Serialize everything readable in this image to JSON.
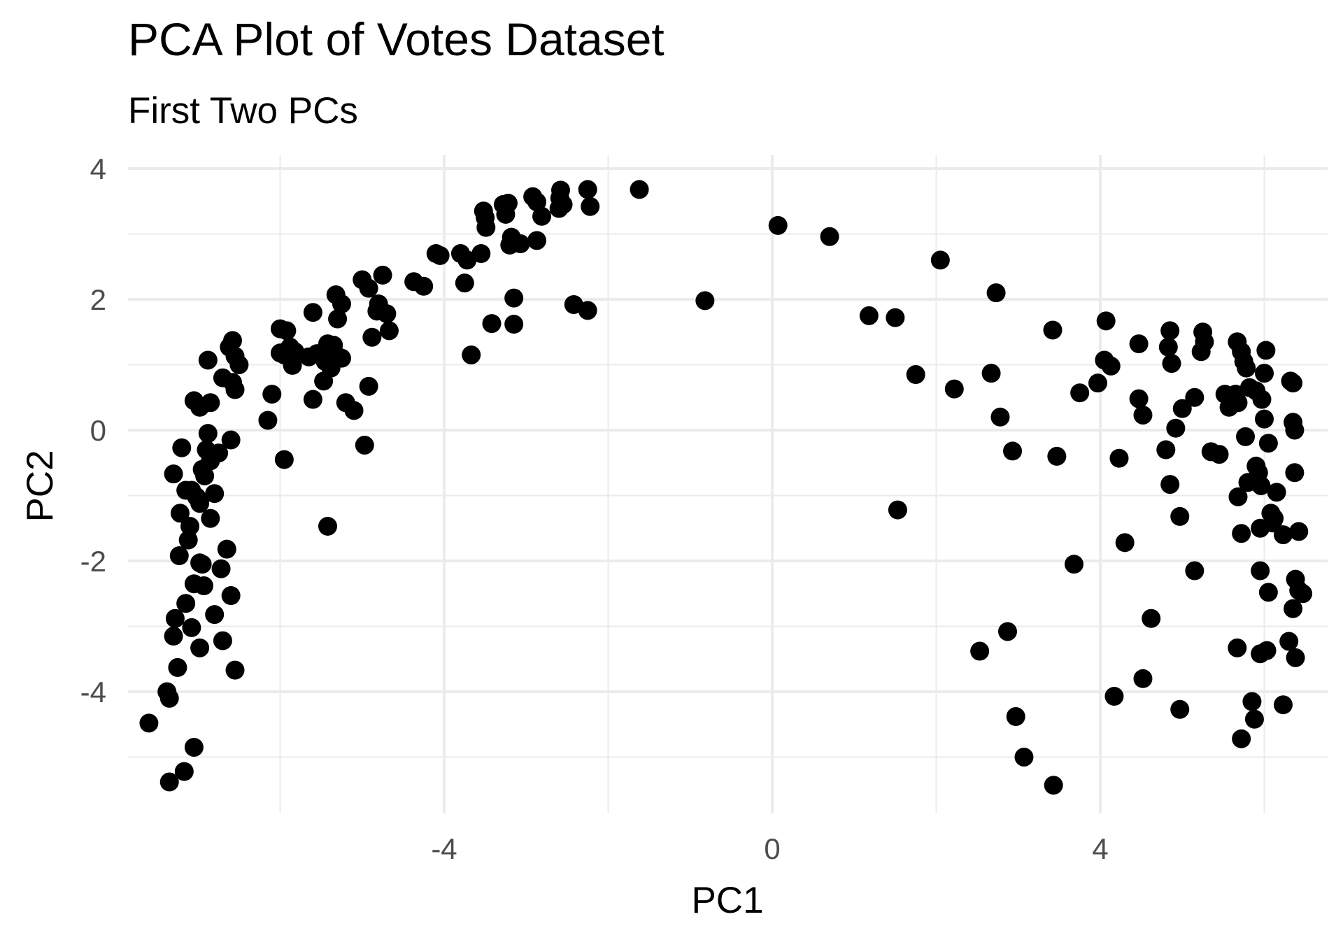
{
  "chart_data": {
    "type": "scatter",
    "title": "PCA Plot of Votes Dataset",
    "subtitle": "First Two PCs",
    "xlabel": "PC1",
    "ylabel": "PC2",
    "xlim": [
      -7.7,
      6.7
    ],
    "ylim": [
      -5.95,
      4.3
    ],
    "x_ticks": [
      -4,
      0,
      4
    ],
    "x_tick_labels": [
      "-4",
      "0",
      "4"
    ],
    "y_ticks": [
      -4,
      -2,
      0,
      2,
      4
    ],
    "y_tick_labels": [
      "-4",
      "-2",
      "0",
      "2",
      "4"
    ],
    "x_minor_ticks": [
      -6,
      -2,
      2,
      6
    ],
    "y_minor_ticks": [
      -5,
      -3,
      -1,
      1,
      3
    ],
    "grid": true,
    "legend": "none",
    "point_color": "#000000",
    "grid_color": "#ebebeb",
    "points": [
      [
        -3.52,
        3.35
      ],
      [
        -3.28,
        3.45
      ],
      [
        -3.22,
        3.47
      ],
      [
        -3.5,
        3.25
      ],
      [
        -3.25,
        3.3
      ],
      [
        -3.49,
        3.1
      ],
      [
        -2.92,
        3.57
      ],
      [
        -2.87,
        3.49
      ],
      [
        -2.58,
        3.67
      ],
      [
        -2.59,
        3.55
      ],
      [
        -2.55,
        3.45
      ],
      [
        -2.25,
        3.68
      ],
      [
        -2.22,
        3.42
      ],
      [
        -1.62,
        3.68
      ],
      [
        -3.18,
        2.95
      ],
      [
        -3.2,
        2.83
      ],
      [
        -3.07,
        2.85
      ],
      [
        -2.87,
        2.9
      ],
      [
        -2.81,
        3.27
      ],
      [
        -2.6,
        3.39
      ],
      [
        -4.1,
        2.7
      ],
      [
        -3.8,
        2.7
      ],
      [
        -3.72,
        2.6
      ],
      [
        -3.55,
        2.7
      ],
      [
        -4.05,
        2.67
      ],
      [
        -4.37,
        2.27
      ],
      [
        -4.25,
        2.2
      ],
      [
        -3.75,
        2.25
      ],
      [
        -4.75,
        2.37
      ],
      [
        -5.0,
        2.3
      ],
      [
        -4.92,
        2.17
      ],
      [
        -3.15,
        2.02
      ],
      [
        -2.42,
        1.92
      ],
      [
        -2.25,
        1.83
      ],
      [
        -0.82,
        1.98
      ],
      [
        -5.32,
        2.07
      ],
      [
        -5.25,
        1.93
      ],
      [
        -4.8,
        1.93
      ],
      [
        -4.7,
        1.78
      ],
      [
        -5.6,
        1.8
      ],
      [
        -4.82,
        1.82
      ],
      [
        -5.3,
        1.7
      ],
      [
        -3.42,
        1.63
      ],
      [
        -3.15,
        1.62
      ],
      [
        -6.0,
        1.55
      ],
      [
        -5.92,
        1.52
      ],
      [
        -4.88,
        1.42
      ],
      [
        -4.67,
        1.52
      ],
      [
        -6.58,
        1.37
      ],
      [
        -6.62,
        1.27
      ],
      [
        -5.88,
        1.27
      ],
      [
        -5.82,
        1.2
      ],
      [
        -5.95,
        1.15
      ],
      [
        -5.42,
        1.32
      ],
      [
        -5.35,
        1.3
      ],
      [
        -5.55,
        1.17
      ],
      [
        -5.65,
        1.12
      ],
      [
        -5.45,
        1.05
      ],
      [
        -5.3,
        1.13
      ],
      [
        -5.25,
        1.1
      ],
      [
        -5.38,
        0.95
      ],
      [
        -3.67,
        1.15
      ],
      [
        -6.55,
        1.13
      ],
      [
        -6.0,
        1.18
      ],
      [
        -6.88,
        1.07
      ],
      [
        -6.5,
        1.0
      ],
      [
        -5.85,
        0.99
      ],
      [
        -6.7,
        0.8
      ],
      [
        -6.58,
        0.73
      ],
      [
        -6.55,
        0.62
      ],
      [
        -6.1,
        0.55
      ],
      [
        -5.47,
        0.75
      ],
      [
        -4.92,
        0.67
      ],
      [
        -7.05,
        0.45
      ],
      [
        -6.98,
        0.35
      ],
      [
        -6.85,
        0.42
      ],
      [
        -5.6,
        0.47
      ],
      [
        -5.2,
        0.42
      ],
      [
        -5.1,
        0.3
      ],
      [
        -6.15,
        0.15
      ],
      [
        -4.97,
        -0.23
      ],
      [
        -6.88,
        -0.05
      ],
      [
        -6.9,
        -0.3
      ],
      [
        -7.2,
        -0.27
      ],
      [
        -6.6,
        -0.15
      ],
      [
        -6.75,
        -0.35
      ],
      [
        -6.85,
        -0.47
      ],
      [
        -5.95,
        -0.45
      ],
      [
        -7.3,
        -0.67
      ],
      [
        -6.95,
        -0.6
      ],
      [
        -6.92,
        -0.7
      ],
      [
        -7.15,
        -0.92
      ],
      [
        -7.08,
        -0.92
      ],
      [
        -6.8,
        -0.97
      ],
      [
        -6.98,
        -1.12
      ],
      [
        -7.02,
        -1.02
      ],
      [
        -5.42,
        -1.47
      ],
      [
        -7.22,
        -1.27
      ],
      [
        -6.85,
        -1.35
      ],
      [
        -7.1,
        -1.47
      ],
      [
        -7.12,
        -1.68
      ],
      [
        -6.65,
        -1.82
      ],
      [
        -7.23,
        -1.92
      ],
      [
        -6.98,
        -2.03
      ],
      [
        -6.72,
        -2.12
      ],
      [
        -6.95,
        -2.05
      ],
      [
        -7.05,
        -2.35
      ],
      [
        -6.93,
        -2.38
      ],
      [
        -6.6,
        -2.53
      ],
      [
        -7.15,
        -2.65
      ],
      [
        -7.28,
        -2.88
      ],
      [
        -6.8,
        -2.82
      ],
      [
        -7.08,
        -3.02
      ],
      [
        -7.3,
        -3.15
      ],
      [
        -6.7,
        -3.22
      ],
      [
        -6.98,
        -3.33
      ],
      [
        -7.25,
        -3.63
      ],
      [
        -6.55,
        -3.67
      ],
      [
        -7.38,
        -4.0
      ],
      [
        -7.35,
        -4.1
      ],
      [
        -7.6,
        -4.48
      ],
      [
        -7.05,
        -4.85
      ],
      [
        -7.17,
        -5.22
      ],
      [
        -7.35,
        -5.38
      ],
      [
        0.07,
        3.13
      ],
      [
        0.7,
        2.96
      ],
      [
        2.05,
        2.6
      ],
      [
        2.73,
        2.1
      ],
      [
        1.18,
        1.75
      ],
      [
        1.5,
        1.72
      ],
      [
        1.75,
        0.85
      ],
      [
        2.22,
        0.63
      ],
      [
        2.67,
        0.87
      ],
      [
        2.78,
        0.2
      ],
      [
        2.93,
        -0.32
      ],
      [
        1.53,
        -1.22
      ],
      [
        3.42,
        1.53
      ],
      [
        3.47,
        -0.4
      ],
      [
        3.68,
        -2.05
      ],
      [
        3.75,
        0.57
      ],
      [
        3.97,
        0.72
      ],
      [
        4.07,
        1.67
      ],
      [
        4.05,
        1.07
      ],
      [
        4.13,
        0.98
      ],
      [
        4.23,
        -0.43
      ],
      [
        4.3,
        -1.72
      ],
      [
        4.47,
        0.48
      ],
      [
        4.52,
        0.23
      ],
      [
        4.47,
        1.32
      ],
      [
        4.85,
        1.52
      ],
      [
        4.83,
        1.27
      ],
      [
        4.87,
        1.02
      ],
      [
        4.92,
        0.03
      ],
      [
        4.8,
        -0.3
      ],
      [
        4.85,
        -0.83
      ],
      [
        4.97,
        -1.32
      ],
      [
        5.0,
        0.33
      ],
      [
        5.15,
        0.5
      ],
      [
        5.15,
        -2.15
      ],
      [
        5.25,
        1.5
      ],
      [
        5.27,
        1.35
      ],
      [
        5.23,
        1.2
      ],
      [
        5.35,
        -0.33
      ],
      [
        5.45,
        -0.37
      ],
      [
        5.52,
        0.55
      ],
      [
        5.57,
        0.35
      ],
      [
        5.65,
        0.55
      ],
      [
        5.68,
        0.42
      ],
      [
        5.68,
        -1.02
      ],
      [
        5.8,
        -0.8
      ],
      [
        5.67,
        1.35
      ],
      [
        5.72,
        1.2
      ],
      [
        5.75,
        1.05
      ],
      [
        5.78,
        0.95
      ],
      [
        5.82,
        0.65
      ],
      [
        5.9,
        0.6
      ],
      [
        5.77,
        -0.1
      ],
      [
        5.72,
        -1.58
      ],
      [
        5.95,
        -1.5
      ],
      [
        5.9,
        -0.55
      ],
      [
        5.93,
        -0.65
      ],
      [
        5.96,
        -0.85
      ],
      [
        6.15,
        -0.95
      ],
      [
        6.02,
        1.22
      ],
      [
        6.0,
        0.87
      ],
      [
        5.97,
        0.47
      ],
      [
        6.0,
        0.17
      ],
      [
        6.05,
        -0.2
      ],
      [
        6.08,
        -1.27
      ],
      [
        6.1,
        -1.42
      ],
      [
        6.12,
        -1.35
      ],
      [
        6.23,
        -1.6
      ],
      [
        6.42,
        -1.55
      ],
      [
        6.32,
        0.75
      ],
      [
        6.35,
        0.72
      ],
      [
        6.35,
        0.12
      ],
      [
        6.37,
        0.0
      ],
      [
        6.37,
        -0.65
      ],
      [
        5.95,
        -2.15
      ],
      [
        6.05,
        -2.48
      ],
      [
        6.38,
        -2.28
      ],
      [
        6.42,
        -2.45
      ],
      [
        6.47,
        -2.5
      ],
      [
        6.35,
        -2.73
      ],
      [
        6.3,
        -3.23
      ],
      [
        6.38,
        -3.48
      ],
      [
        5.95,
        -3.42
      ],
      [
        5.67,
        -3.33
      ],
      [
        6.03,
        -3.37
      ],
      [
        2.53,
        -3.38
      ],
      [
        2.87,
        -3.08
      ],
      [
        2.97,
        -4.38
      ],
      [
        3.07,
        -5.0
      ],
      [
        3.43,
        -5.43
      ],
      [
        4.17,
        -4.07
      ],
      [
        4.52,
        -3.8
      ],
      [
        4.62,
        -2.88
      ],
      [
        4.97,
        -4.27
      ],
      [
        5.72,
        -4.72
      ],
      [
        5.85,
        -4.15
      ],
      [
        5.88,
        -4.42
      ],
      [
        6.23,
        -4.2
      ]
    ]
  }
}
